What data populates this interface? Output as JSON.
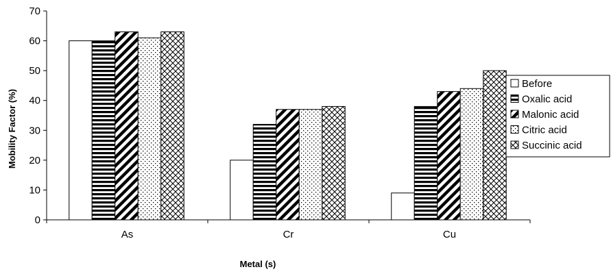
{
  "chart_data": {
    "type": "bar",
    "title": "",
    "xlabel": "Metal (s)",
    "ylabel": "Mobility Factor (%)",
    "ylim": [
      0,
      70
    ],
    "yticks": [
      0,
      10,
      20,
      30,
      40,
      50,
      60,
      70
    ],
    "grid": false,
    "legend_position": "right",
    "categories": [
      "As",
      "Cr",
      "Cu"
    ],
    "series": [
      {
        "name": "Before",
        "values": [
          60,
          20,
          9
        ],
        "pattern": "blank"
      },
      {
        "name": "Oxalic acid",
        "values": [
          60,
          32,
          38
        ],
        "pattern": "horizontal-stripes"
      },
      {
        "name": "Malonic acid",
        "values": [
          63,
          37,
          43
        ],
        "pattern": "diagonal-stripes"
      },
      {
        "name": "Citric acid",
        "values": [
          61,
          37,
          44
        ],
        "pattern": "dots"
      },
      {
        "name": "Succinic acid",
        "values": [
          63,
          38,
          50
        ],
        "pattern": "crosshatch"
      }
    ]
  }
}
